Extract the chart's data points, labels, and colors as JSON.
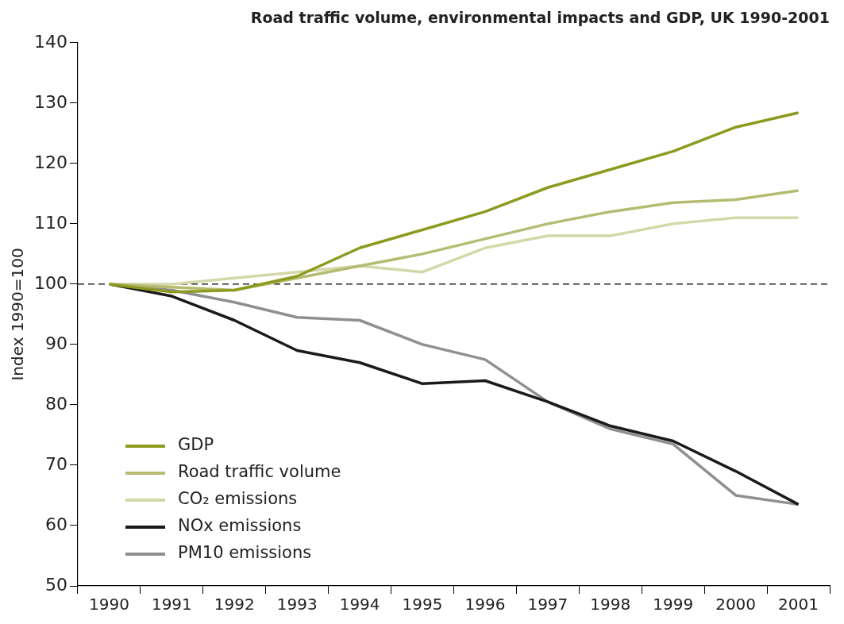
{
  "chart_data": {
    "type": "line",
    "title": "Road traffic volume, environmental impacts and GDP, UK 1990-2001",
    "ylabel": "Index 1990=100",
    "categories": [
      "1990",
      "1991",
      "1992",
      "1993",
      "1994",
      "1995",
      "1996",
      "1997",
      "1998",
      "1999",
      "2000",
      "2001"
    ],
    "series": [
      {
        "name": "GDP",
        "color": "#8c9a1e",
        "values": [
          100,
          98.7,
          99,
          101.3,
          106,
          109,
          112,
          116,
          119,
          122,
          126,
          128.4
        ]
      },
      {
        "name": "Road traffic volume",
        "color": "#b5bc72",
        "values": [
          100,
          99.5,
          99,
          101,
          103,
          105,
          107.5,
          110,
          112,
          113.5,
          114,
          115.5
        ]
      },
      {
        "name": "CO₂ emissions",
        "color": "#d3d8a8",
        "values": [
          100,
          100,
          101,
          102,
          103,
          102,
          106,
          108,
          108,
          110,
          111,
          111
        ]
      },
      {
        "name": "NOx emissions",
        "color": "#1a1a1a",
        "values": [
          100,
          98,
          94,
          89,
          87,
          83.5,
          84,
          80.5,
          76.5,
          74,
          69,
          63.5
        ]
      },
      {
        "name": "PM10 emissions",
        "color": "#8f8f8f",
        "values": [
          100,
          99,
          97,
          94.5,
          94,
          90,
          87.5,
          80.5,
          76,
          73.5,
          65,
          63.5
        ]
      }
    ],
    "ylim": [
      50,
      140
    ],
    "yticks": [
      50,
      60,
      70,
      80,
      90,
      100,
      110,
      120,
      130,
      140
    ],
    "ref_lines": [
      {
        "axis": "y",
        "value": 100,
        "color": "#000000",
        "line_style": "dashed"
      }
    ],
    "legend": "bottom left",
    "grid": false,
    "marker": "none",
    "line_style": "solid"
  }
}
